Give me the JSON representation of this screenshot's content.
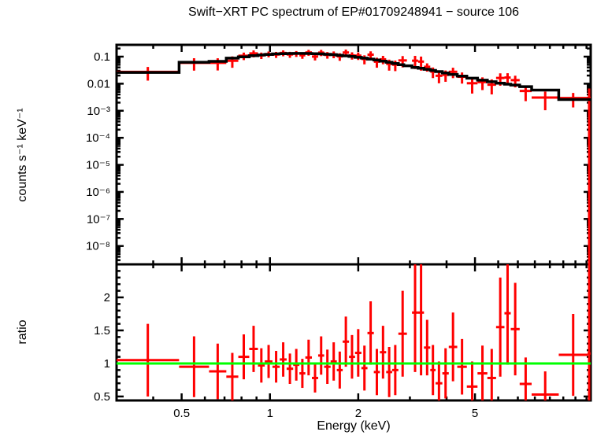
{
  "title": "Swift−XRT PC spectrum of EP#01709248941 − source 106",
  "colors": {
    "data": "#ff0000",
    "model": "#000000",
    "reference_line": "#00ff00",
    "axis": "#000000",
    "background": "#ffffff"
  },
  "chart_data": {
    "type": "line",
    "description": "Two-panel X-ray spectral plot: top = counts spectrum with stepped model, bottom = data/model ratio",
    "x_axis": {
      "label": "Energy (keV)",
      "scale": "log",
      "range": [
        0.3,
        12.4
      ],
      "major_ticks": [
        {
          "value": 0.5,
          "label": "0.5"
        },
        {
          "value": 1,
          "label": "1"
        },
        {
          "value": 2,
          "label": "2"
        },
        {
          "value": 5,
          "label": "5"
        }
      ],
      "minor_ticks": [
        0.4,
        0.6,
        0.7,
        0.8,
        0.9,
        3,
        4,
        6,
        7,
        8,
        9,
        10,
        11,
        12
      ]
    },
    "top_panel": {
      "ylabel": "counts s⁻¹ keV⁻¹",
      "scale": "log",
      "range": [
        2.1e-09,
        0.273
      ],
      "major_ticks": [
        {
          "value": 0.1,
          "label": "0.1"
        },
        {
          "value": 0.01,
          "label": "0.01"
        },
        {
          "value": 0.001,
          "label": "10⁻³"
        },
        {
          "value": 0.0001,
          "label": "10⁻⁴"
        },
        {
          "value": 1e-05,
          "label": "10⁻⁵"
        },
        {
          "value": 1e-06,
          "label": "10⁻⁶"
        },
        {
          "value": 1e-07,
          "label": "10⁻⁷"
        },
        {
          "value": 1e-08,
          "label": "10⁻⁸"
        }
      ]
    },
    "ratio_panel": {
      "ylabel": "ratio",
      "scale": "linear",
      "range": [
        0.44,
        2.5
      ],
      "major_ticks": [
        {
          "value": 0.5,
          "label": "0.5"
        },
        {
          "value": 1,
          "label": "1"
        },
        {
          "value": 1.5,
          "label": "1.5"
        },
        {
          "value": 2,
          "label": "2"
        }
      ],
      "minor_tick_step": 0.1,
      "reference_line": 1
    },
    "model": {
      "comment": "stepped best-fit model; edges in keV, values in counts/s/keV",
      "edges": [
        0.3,
        0.49,
        0.62,
        0.71,
        0.78,
        0.85,
        0.91,
        0.96,
        1.02,
        1.08,
        1.14,
        1.2,
        1.26,
        1.32,
        1.39,
        1.46,
        1.53,
        1.61,
        1.69,
        1.77,
        1.86,
        1.95,
        2.05,
        2.15,
        2.26,
        2.37,
        2.49,
        2.61,
        2.74,
        2.86,
        3.05,
        3.2,
        3.35,
        3.52,
        3.67,
        3.87,
        4.07,
        4.35,
        4.69,
        5.1,
        5.51,
        5.9,
        6.3,
        6.62,
        7.1,
        7.8,
        9.65,
        12.4
      ],
      "values": [
        0.026,
        0.062,
        0.067,
        0.088,
        0.098,
        0.108,
        0.115,
        0.121,
        0.126,
        0.129,
        0.131,
        0.132,
        0.132,
        0.131,
        0.129,
        0.126,
        0.122,
        0.118,
        0.113,
        0.107,
        0.101,
        0.094,
        0.088,
        0.081,
        0.075,
        0.068,
        0.062,
        0.056,
        0.05,
        0.046,
        0.04,
        0.037,
        0.034,
        0.031,
        0.028,
        0.025,
        0.022,
        0.019,
        0.016,
        0.0135,
        0.0118,
        0.0105,
        0.0096,
        0.0089,
        0.0078,
        0.0058,
        0.0026
      ]
    },
    "points_schema": [
      "e_lo_keV",
      "e_hi_keV",
      "ratio",
      "ratio_err"
    ],
    "points": [
      [
        0.3,
        0.49,
        1.05,
        0.55
      ],
      [
        0.49,
        0.62,
        0.95,
        0.46
      ],
      [
        0.62,
        0.71,
        0.88,
        0.42
      ],
      [
        0.71,
        0.78,
        0.8,
        0.36
      ],
      [
        0.78,
        0.85,
        1.1,
        0.34
      ],
      [
        0.85,
        0.91,
        1.22,
        0.35
      ],
      [
        0.91,
        0.96,
        0.97,
        0.26
      ],
      [
        0.96,
        1.02,
        1.03,
        0.25
      ],
      [
        1.02,
        1.08,
        0.95,
        0.24
      ],
      [
        1.08,
        1.14,
        1.06,
        0.26
      ],
      [
        1.14,
        1.2,
        0.92,
        0.23
      ],
      [
        1.2,
        1.26,
        0.98,
        0.24
      ],
      [
        1.26,
        1.32,
        0.85,
        0.22
      ],
      [
        1.32,
        1.39,
        1.09,
        0.27
      ],
      [
        1.39,
        1.46,
        0.78,
        0.22
      ],
      [
        1.46,
        1.53,
        1.12,
        0.29
      ],
      [
        1.53,
        1.61,
        0.95,
        0.26
      ],
      [
        1.61,
        1.69,
        1.03,
        0.29
      ],
      [
        1.69,
        1.77,
        0.9,
        0.28
      ],
      [
        1.77,
        1.86,
        1.33,
        0.38
      ],
      [
        1.86,
        1.95,
        1.1,
        0.33
      ],
      [
        1.95,
        2.05,
        1.16,
        0.36
      ],
      [
        2.05,
        2.15,
        0.93,
        0.34
      ],
      [
        2.15,
        2.26,
        1.46,
        0.48
      ],
      [
        2.26,
        2.37,
        0.87,
        0.35
      ],
      [
        2.37,
        2.49,
        1.17,
        0.4
      ],
      [
        2.49,
        2.61,
        0.87,
        0.38
      ],
      [
        2.61,
        2.74,
        0.9,
        0.38
      ],
      [
        2.74,
        2.93,
        1.45,
        0.65
      ],
      [
        3.05,
        3.2,
        1.77,
        0.9
      ],
      [
        3.2,
        3.35,
        1.77,
        0.95
      ],
      [
        3.35,
        3.52,
        1.24,
        0.42
      ],
      [
        3.52,
        3.67,
        0.9,
        0.38
      ],
      [
        3.67,
        3.87,
        0.7,
        0.33
      ],
      [
        3.87,
        4.07,
        0.85,
        0.38
      ],
      [
        4.07,
        4.35,
        1.25,
        0.52
      ],
      [
        4.35,
        4.69,
        0.95,
        0.42
      ],
      [
        4.69,
        5.1,
        0.65,
        0.38
      ],
      [
        5.1,
        5.51,
        0.85,
        0.42
      ],
      [
        5.51,
        5.9,
        0.78,
        0.44
      ],
      [
        5.9,
        6.3,
        1.55,
        0.75
      ],
      [
        6.3,
        6.62,
        1.76,
        0.78
      ],
      [
        6.62,
        7.1,
        1.52,
        0.7
      ],
      [
        7.1,
        7.8,
        0.69,
        0.4
      ],
      [
        7.8,
        9.65,
        0.53,
        0.35
      ],
      [
        9.65,
        12.1,
        1.13,
        0.62
      ],
      [
        12.1,
        12.4,
        1.15,
        1.4
      ]
    ]
  }
}
